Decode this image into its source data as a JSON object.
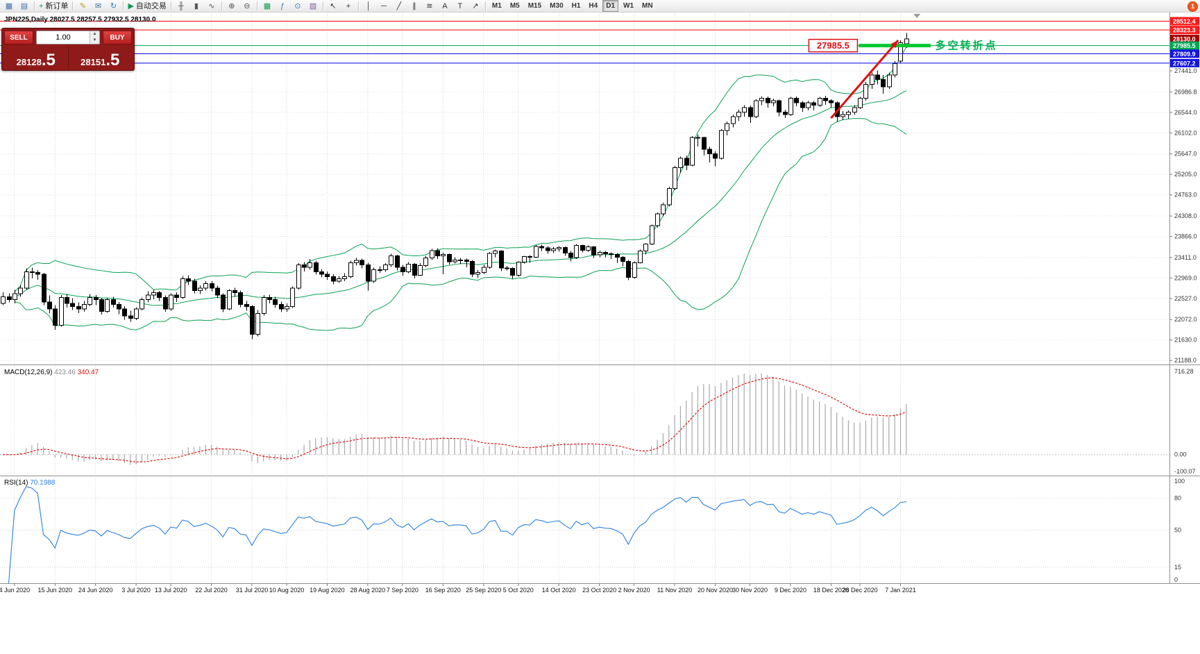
{
  "app": {
    "notification_badge": "1"
  },
  "toolbar": {
    "icons": [
      {
        "name": "new-chart",
        "glyph": "▦",
        "color": "#3f6fa8"
      },
      {
        "name": "profiles",
        "glyph": "▤",
        "color": "#3f6fa8"
      },
      {
        "sep": true
      },
      {
        "name": "new-order",
        "glyph": "+",
        "color": "#0a9d4e",
        "label": "新订单"
      },
      {
        "sep": true
      },
      {
        "name": "metaeditor",
        "glyph": "✎",
        "color": "#c9941a"
      },
      {
        "name": "mailbox",
        "glyph": "✉",
        "color": "#3f6fa8"
      },
      {
        "name": "refresh",
        "glyph": "↻",
        "color": "#2f7fc1"
      },
      {
        "sep": true
      },
      {
        "name": "autotrading",
        "glyph": "▶",
        "color": "#0a9d4e",
        "label": "自动交易"
      },
      {
        "sep": true
      },
      {
        "name": "bar-chart",
        "glyph": "╫",
        "color": "#555555"
      },
      {
        "name": "candlestick-chart",
        "glyph": "▮",
        "color": "#555555"
      },
      {
        "name": "line-chart",
        "glyph": "∿",
        "color": "#555555"
      },
      {
        "sep": true
      },
      {
        "name": "zoom-in",
        "glyph": "⊕",
        "color": "#555555"
      },
      {
        "name": "zoom-out",
        "glyph": "⊖",
        "color": "#555555"
      },
      {
        "sep": true
      },
      {
        "name": "tile-windows",
        "glyph": "▦",
        "color": "#0a9d4e"
      },
      {
        "name": "indicators",
        "glyph": "ƒ",
        "color": "#2f7fc1"
      },
      {
        "name": "periods",
        "glyph": "⊙",
        "color": "#2f7fc1"
      },
      {
        "name": "templates",
        "glyph": "▧",
        "color": "#7d5fa0"
      },
      {
        "sep": true
      },
      {
        "name": "cursor",
        "glyph": "↖",
        "color": "#333333"
      },
      {
        "name": "crosshair",
        "glyph": "+",
        "color": "#333333"
      },
      {
        "sep": true
      },
      {
        "name": "vertical-line",
        "glyph": "│",
        "color": "#333333"
      },
      {
        "name": "horizontal-line",
        "glyph": "─",
        "color": "#333333"
      },
      {
        "name": "trendline",
        "glyph": "╱",
        "color": "#333333"
      },
      {
        "name": "channel",
        "glyph": "∥",
        "color": "#333333"
      },
      {
        "name": "fibonacci",
        "glyph": "≋",
        "color": "#333333"
      },
      {
        "name": "text",
        "glyph": "A",
        "color": "#333333"
      },
      {
        "name": "label",
        "glyph": "T",
        "color": "#333333"
      },
      {
        "name": "arrows",
        "glyph": "↗",
        "color": "#333333"
      },
      {
        "sep": true
      }
    ],
    "timeframes": [
      "M1",
      "M5",
      "M15",
      "M30",
      "H1",
      "H4",
      "D1",
      "W1",
      "MN"
    ],
    "active_timeframe": "D1"
  },
  "trade_panel": {
    "sell_label": "SELL",
    "buy_label": "BUY",
    "volume": "1.00",
    "sell_price": "28128.5",
    "buy_price": "28151.5"
  },
  "chart_data": {
    "type": "candlestick",
    "symbol": "JPN225",
    "timeframe": "Daily",
    "header": {
      "symbol_label": "JPN225,Daily",
      "open": "28027.5",
      "high": "28257.5",
      "low": "27932.5",
      "close": "28130.0"
    },
    "view": {
      "price_min": 21116,
      "price_max": 28700
    },
    "price_scale": {
      "ticks": [
        27441.0,
        26986.8,
        26544.0,
        26102.0,
        25647.0,
        25205.0,
        24763.0,
        24308.0,
        23866.0,
        23411.0,
        22969.0,
        22527.0,
        22072.0,
        21630.0,
        21188.0
      ],
      "boxes": [
        {
          "text": "28512.4",
          "price": 28512.4,
          "bg": "#ff1a1a"
        },
        {
          "text": "28323.3",
          "price": 28323.3,
          "bg": "#ff1a1a"
        },
        {
          "text": "28130.0",
          "price": 28130.0,
          "bg": "#a40000"
        },
        {
          "text": "27985.5",
          "price": 27985.5,
          "bg": "#00a651"
        },
        {
          "text": "27809.9",
          "price": 27809.9,
          "bg": "#1414e0"
        },
        {
          "text": "27607.2",
          "price": 27607.2,
          "bg": "#1414e0"
        }
      ]
    },
    "x_labels": [
      {
        "i": 2,
        "t": "4 Jun 2020"
      },
      {
        "i": 9,
        "t": "15 Jun 2020"
      },
      {
        "i": 16,
        "t": "24 Jun 2020"
      },
      {
        "i": 23,
        "t": "3 Jul 2020"
      },
      {
        "i": 29,
        "t": "13 Jul 2020"
      },
      {
        "i": 36,
        "t": "22 Jul 2020"
      },
      {
        "i": 43,
        "t": "31 Jul 2020"
      },
      {
        "i": 49,
        "t": "10 Aug 2020"
      },
      {
        "i": 56,
        "t": "19 Aug 2020"
      },
      {
        "i": 63,
        "t": "28 Aug 2020"
      },
      {
        "i": 69,
        "t": "7 Sep 2020"
      },
      {
        "i": 76,
        "t": "16 Sep 2020"
      },
      {
        "i": 83,
        "t": "25 Sep 2020"
      },
      {
        "i": 89,
        "t": "5 Oct 2020"
      },
      {
        "i": 96,
        "t": "14 Oct 2020"
      },
      {
        "i": 103,
        "t": "23 Oct 2020"
      },
      {
        "i": 109,
        "t": "2 Nov 2020"
      },
      {
        "i": 116,
        "t": "11 Nov 2020"
      },
      {
        "i": 123,
        "t": "20 Nov 2020"
      },
      {
        "i": 129,
        "t": "30 Nov 2020"
      },
      {
        "i": 136,
        "t": "9 Dec 2020"
      },
      {
        "i": 143,
        "t": "18 Dec 2020"
      },
      {
        "i": 148,
        "t": "28 Dec 2020"
      },
      {
        "i": 155,
        "t": "7 Jan 2021"
      }
    ],
    "candles": [
      [
        22420,
        22660,
        22380,
        22560
      ],
      [
        22560,
        22640,
        22440,
        22500
      ],
      [
        22500,
        22710,
        22420,
        22630
      ],
      [
        22630,
        22820,
        22560,
        22750
      ],
      [
        22750,
        23180,
        22720,
        23100
      ],
      [
        23100,
        23190,
        22960,
        23090
      ],
      [
        23090,
        23140,
        22930,
        23050
      ],
      [
        23050,
        23080,
        22380,
        22450
      ],
      [
        22450,
        22590,
        22200,
        22300
      ],
      [
        22300,
        22380,
        21850,
        21950
      ],
      [
        21950,
        22600,
        21920,
        22550
      ],
      [
        22550,
        22620,
        22330,
        22420
      ],
      [
        22420,
        22530,
        22280,
        22350
      ],
      [
        22350,
        22440,
        22210,
        22300
      ],
      [
        22300,
        22470,
        22240,
        22400
      ],
      [
        22400,
        22620,
        22360,
        22550
      ],
      [
        22550,
        22600,
        22380,
        22500
      ],
      [
        22500,
        22540,
        22180,
        22250
      ],
      [
        22250,
        22540,
        22220,
        22500
      ],
      [
        22500,
        22560,
        22330,
        22400
      ],
      [
        22400,
        22450,
        22190,
        22300
      ],
      [
        22300,
        22360,
        22070,
        22150
      ],
      [
        22150,
        22260,
        22020,
        22100
      ],
      [
        22100,
        22340,
        22060,
        22300
      ],
      [
        22300,
        22550,
        22270,
        22500
      ],
      [
        22500,
        22680,
        22440,
        22600
      ],
      [
        22600,
        22720,
        22510,
        22650
      ],
      [
        22650,
        22690,
        22470,
        22550
      ],
      [
        22550,
        22590,
        22240,
        22300
      ],
      [
        22300,
        22640,
        22260,
        22600
      ],
      [
        22600,
        22660,
        22450,
        22550
      ],
      [
        22550,
        23010,
        22520,
        22950
      ],
      [
        22950,
        23030,
        22820,
        22900
      ],
      [
        22900,
        22950,
        22640,
        22700
      ],
      [
        22700,
        22810,
        22620,
        22750
      ],
      [
        22750,
        22900,
        22700,
        22850
      ],
      [
        22850,
        22900,
        22680,
        22750
      ],
      [
        22750,
        22800,
        22530,
        22600
      ],
      [
        22600,
        22640,
        22230,
        22300
      ],
      [
        22300,
        22730,
        22270,
        22700
      ],
      [
        22700,
        22760,
        22560,
        22650
      ],
      [
        22650,
        22700,
        22340,
        22400
      ],
      [
        22400,
        22470,
        22260,
        22350
      ],
      [
        22350,
        22380,
        21650,
        21750
      ],
      [
        21750,
        22280,
        21710,
        22200
      ],
      [
        22200,
        22600,
        22160,
        22550
      ],
      [
        22550,
        22610,
        22420,
        22500
      ],
      [
        22500,
        22560,
        22330,
        22400
      ],
      [
        22400,
        22460,
        22230,
        22300
      ],
      [
        22300,
        22420,
        22240,
        22350
      ],
      [
        22350,
        22790,
        22320,
        22750
      ],
      [
        22750,
        23290,
        22720,
        23250
      ],
      [
        23250,
        23310,
        23110,
        23200
      ],
      [
        23200,
        23380,
        23150,
        23300
      ],
      [
        23300,
        23340,
        23040,
        23100
      ],
      [
        23100,
        23160,
        22980,
        23050
      ],
      [
        23050,
        23110,
        22930,
        23000
      ],
      [
        23000,
        23050,
        22830,
        22900
      ],
      [
        22900,
        23010,
        22860,
        22950
      ],
      [
        22950,
        23070,
        22900,
        23000
      ],
      [
        23000,
        23340,
        22970,
        23300
      ],
      [
        23300,
        23400,
        23240,
        23350
      ],
      [
        23350,
        23390,
        23180,
        23250
      ],
      [
        23250,
        23300,
        22700,
        22900
      ],
      [
        22900,
        23190,
        22860,
        23150
      ],
      [
        23150,
        23220,
        23080,
        23150
      ],
      [
        23150,
        23290,
        23100,
        23250
      ],
      [
        23250,
        23490,
        23210,
        23450
      ],
      [
        23450,
        23470,
        23130,
        23200
      ],
      [
        23200,
        23250,
        23020,
        23100
      ],
      [
        23100,
        23310,
        23070,
        23270
      ],
      [
        23270,
        23290,
        22960,
        23030
      ],
      [
        23030,
        23290,
        23010,
        23235
      ],
      [
        23235,
        23440,
        23200,
        23400
      ],
      [
        23400,
        23600,
        23360,
        23560
      ],
      [
        23560,
        23610,
        23380,
        23450
      ],
      [
        23450,
        23520,
        23050,
        23480
      ],
      [
        23480,
        23500,
        23260,
        23320
      ],
      [
        23320,
        23420,
        23280,
        23360
      ],
      [
        23360,
        23400,
        23270,
        23360
      ],
      [
        23360,
        23390,
        23200,
        23330
      ],
      [
        23330,
        23360,
        22990,
        23050
      ],
      [
        23050,
        23140,
        22970,
        23090
      ],
      [
        23090,
        23250,
        23050,
        23200
      ],
      [
        23200,
        23530,
        23170,
        23500
      ],
      [
        23500,
        23580,
        23420,
        23550
      ],
      [
        23550,
        23570,
        23120,
        23185
      ],
      [
        23185,
        23230,
        23130,
        23180
      ],
      [
        23180,
        23200,
        22950,
        23030
      ],
      [
        23030,
        23330,
        23000,
        23310
      ],
      [
        23310,
        23450,
        23280,
        23430
      ],
      [
        23430,
        23460,
        23300,
        23420
      ],
      [
        23420,
        23680,
        23400,
        23650
      ],
      [
        23650,
        23690,
        23550,
        23620
      ],
      [
        23620,
        23660,
        23490,
        23560
      ],
      [
        23560,
        23640,
        23510,
        23600
      ],
      [
        23600,
        23660,
        23540,
        23630
      ],
      [
        23630,
        23650,
        23450,
        23510
      ],
      [
        23510,
        23550,
        23330,
        23410
      ],
      [
        23410,
        23700,
        23380,
        23670
      ],
      [
        23670,
        23690,
        23520,
        23570
      ],
      [
        23570,
        23670,
        23530,
        23640
      ],
      [
        23640,
        23660,
        23400,
        23470
      ],
      [
        23470,
        23560,
        23420,
        23520
      ],
      [
        23520,
        23550,
        23410,
        23490
      ],
      [
        23490,
        23520,
        23380,
        23480
      ],
      [
        23480,
        23510,
        23290,
        23420
      ],
      [
        23420,
        23440,
        23220,
        23330
      ],
      [
        23330,
        23360,
        22920,
        22980
      ],
      [
        22980,
        23330,
        22950,
        23300
      ],
      [
        23300,
        23580,
        23280,
        23550
      ],
      [
        23550,
        23720,
        23480,
        23700
      ],
      [
        23700,
        24120,
        23680,
        24100
      ],
      [
        24100,
        24380,
        24050,
        24350
      ],
      [
        24350,
        24590,
        24300,
        24550
      ],
      [
        24550,
        24940,
        24510,
        24900
      ],
      [
        24900,
        25390,
        24860,
        25350
      ],
      [
        25350,
        25590,
        25240,
        25550
      ],
      [
        25550,
        25610,
        25300,
        25400
      ],
      [
        25400,
        26030,
        25380,
        26000
      ],
      [
        26000,
        26070,
        25810,
        26000
      ],
      [
        26000,
        26020,
        25610,
        25750
      ],
      [
        25750,
        25800,
        25460,
        25650
      ],
      [
        25650,
        25700,
        25380,
        25550
      ],
      [
        25550,
        26180,
        25520,
        26150
      ],
      [
        26150,
        26350,
        26050,
        26300
      ],
      [
        26300,
        26500,
        26220,
        26450
      ],
      [
        26450,
        26600,
        26360,
        26550
      ],
      [
        26550,
        26700,
        26450,
        26650
      ],
      [
        26650,
        26690,
        26320,
        26450
      ],
      [
        26450,
        26830,
        26420,
        26800
      ],
      [
        26800,
        26890,
        26700,
        26850
      ],
      [
        26850,
        26890,
        26650,
        26750
      ],
      [
        26750,
        26840,
        26680,
        26800
      ],
      [
        26800,
        26820,
        26460,
        26550
      ],
      [
        26550,
        26600,
        26420,
        26500
      ],
      [
        26500,
        26880,
        26470,
        26850
      ],
      [
        26850,
        26890,
        26680,
        26750
      ],
      [
        26750,
        26790,
        26560,
        26650
      ],
      [
        26650,
        26800,
        26590,
        26750
      ],
      [
        26750,
        26790,
        26590,
        26700
      ],
      [
        26700,
        26880,
        26660,
        26850
      ],
      [
        26850,
        26900,
        26710,
        26800
      ],
      [
        26800,
        26830,
        26650,
        26750
      ],
      [
        26750,
        26780,
        26340,
        26450
      ],
      [
        26450,
        26570,
        26380,
        26500
      ],
      [
        26500,
        26590,
        26410,
        26550
      ],
      [
        26550,
        26700,
        26490,
        26650
      ],
      [
        26650,
        26880,
        26620,
        26850
      ],
      [
        26850,
        27200,
        26800,
        27150
      ],
      [
        27150,
        27400,
        27050,
        27350
      ],
      [
        27350,
        27450,
        27150,
        27250
      ],
      [
        27250,
        27350,
        26950,
        27100
      ],
      [
        27100,
        27400,
        27050,
        27350
      ],
      [
        27350,
        27650,
        27300,
        27600
      ],
      [
        27650,
        28100,
        27600,
        28050
      ],
      [
        28027.5,
        28257.5,
        27932.5,
        28130
      ]
    ],
    "overlays": {
      "hlines": [
        {
          "price": 28512.4,
          "color": "#ff0000"
        },
        {
          "price": 28323.3,
          "color": "#ff0000"
        },
        {
          "price": 27985.5,
          "color": "#00a651"
        },
        {
          "price": 27809.9,
          "color": "#0000e0"
        },
        {
          "price": 27607.2,
          "color": "#0000e0"
        }
      ],
      "level_segment": {
        "price": 27985.5,
        "from_x_index": 147.8,
        "to_x_index": 160.2,
        "color": "#00c832",
        "width": 5
      },
      "trend_arrow": {
        "from_x_index": 143,
        "from_price": 26420,
        "to_x_index": 154.6,
        "to_price": 28100,
        "color": "#e01010",
        "width": 3
      },
      "price_callout": {
        "text": "27985.5",
        "price": 27985.5,
        "to_x_index": 147.8,
        "color": "#e01010"
      },
      "annotation": {
        "text": "多空转折点",
        "price": 27985.5,
        "x_index": 161,
        "color": "#00b050"
      }
    },
    "indicators": {
      "bollinger": {
        "period": 20,
        "deviation": 2,
        "color": "#0aa052"
      },
      "macd": {
        "label": "MACD(12,26,9)",
        "fast": 12,
        "slow": 26,
        "signal_period": 9,
        "main_value": "423.46",
        "signal_value": "340.47",
        "histogram_color": "#a8a8a8",
        "signal_color": "#e01010",
        "scale_labels": {
          "top": "716.28",
          "zero": "0.00",
          "bottom": "-100.07"
        }
      },
      "rsi": {
        "label": "RSI(14)",
        "period": 14,
        "value": "70.1988",
        "color": "#2a7fde",
        "levels": [
          80,
          50,
          15
        ],
        "scale_labels": [
          "100",
          "80",
          "50",
          "15",
          "0"
        ]
      }
    }
  }
}
